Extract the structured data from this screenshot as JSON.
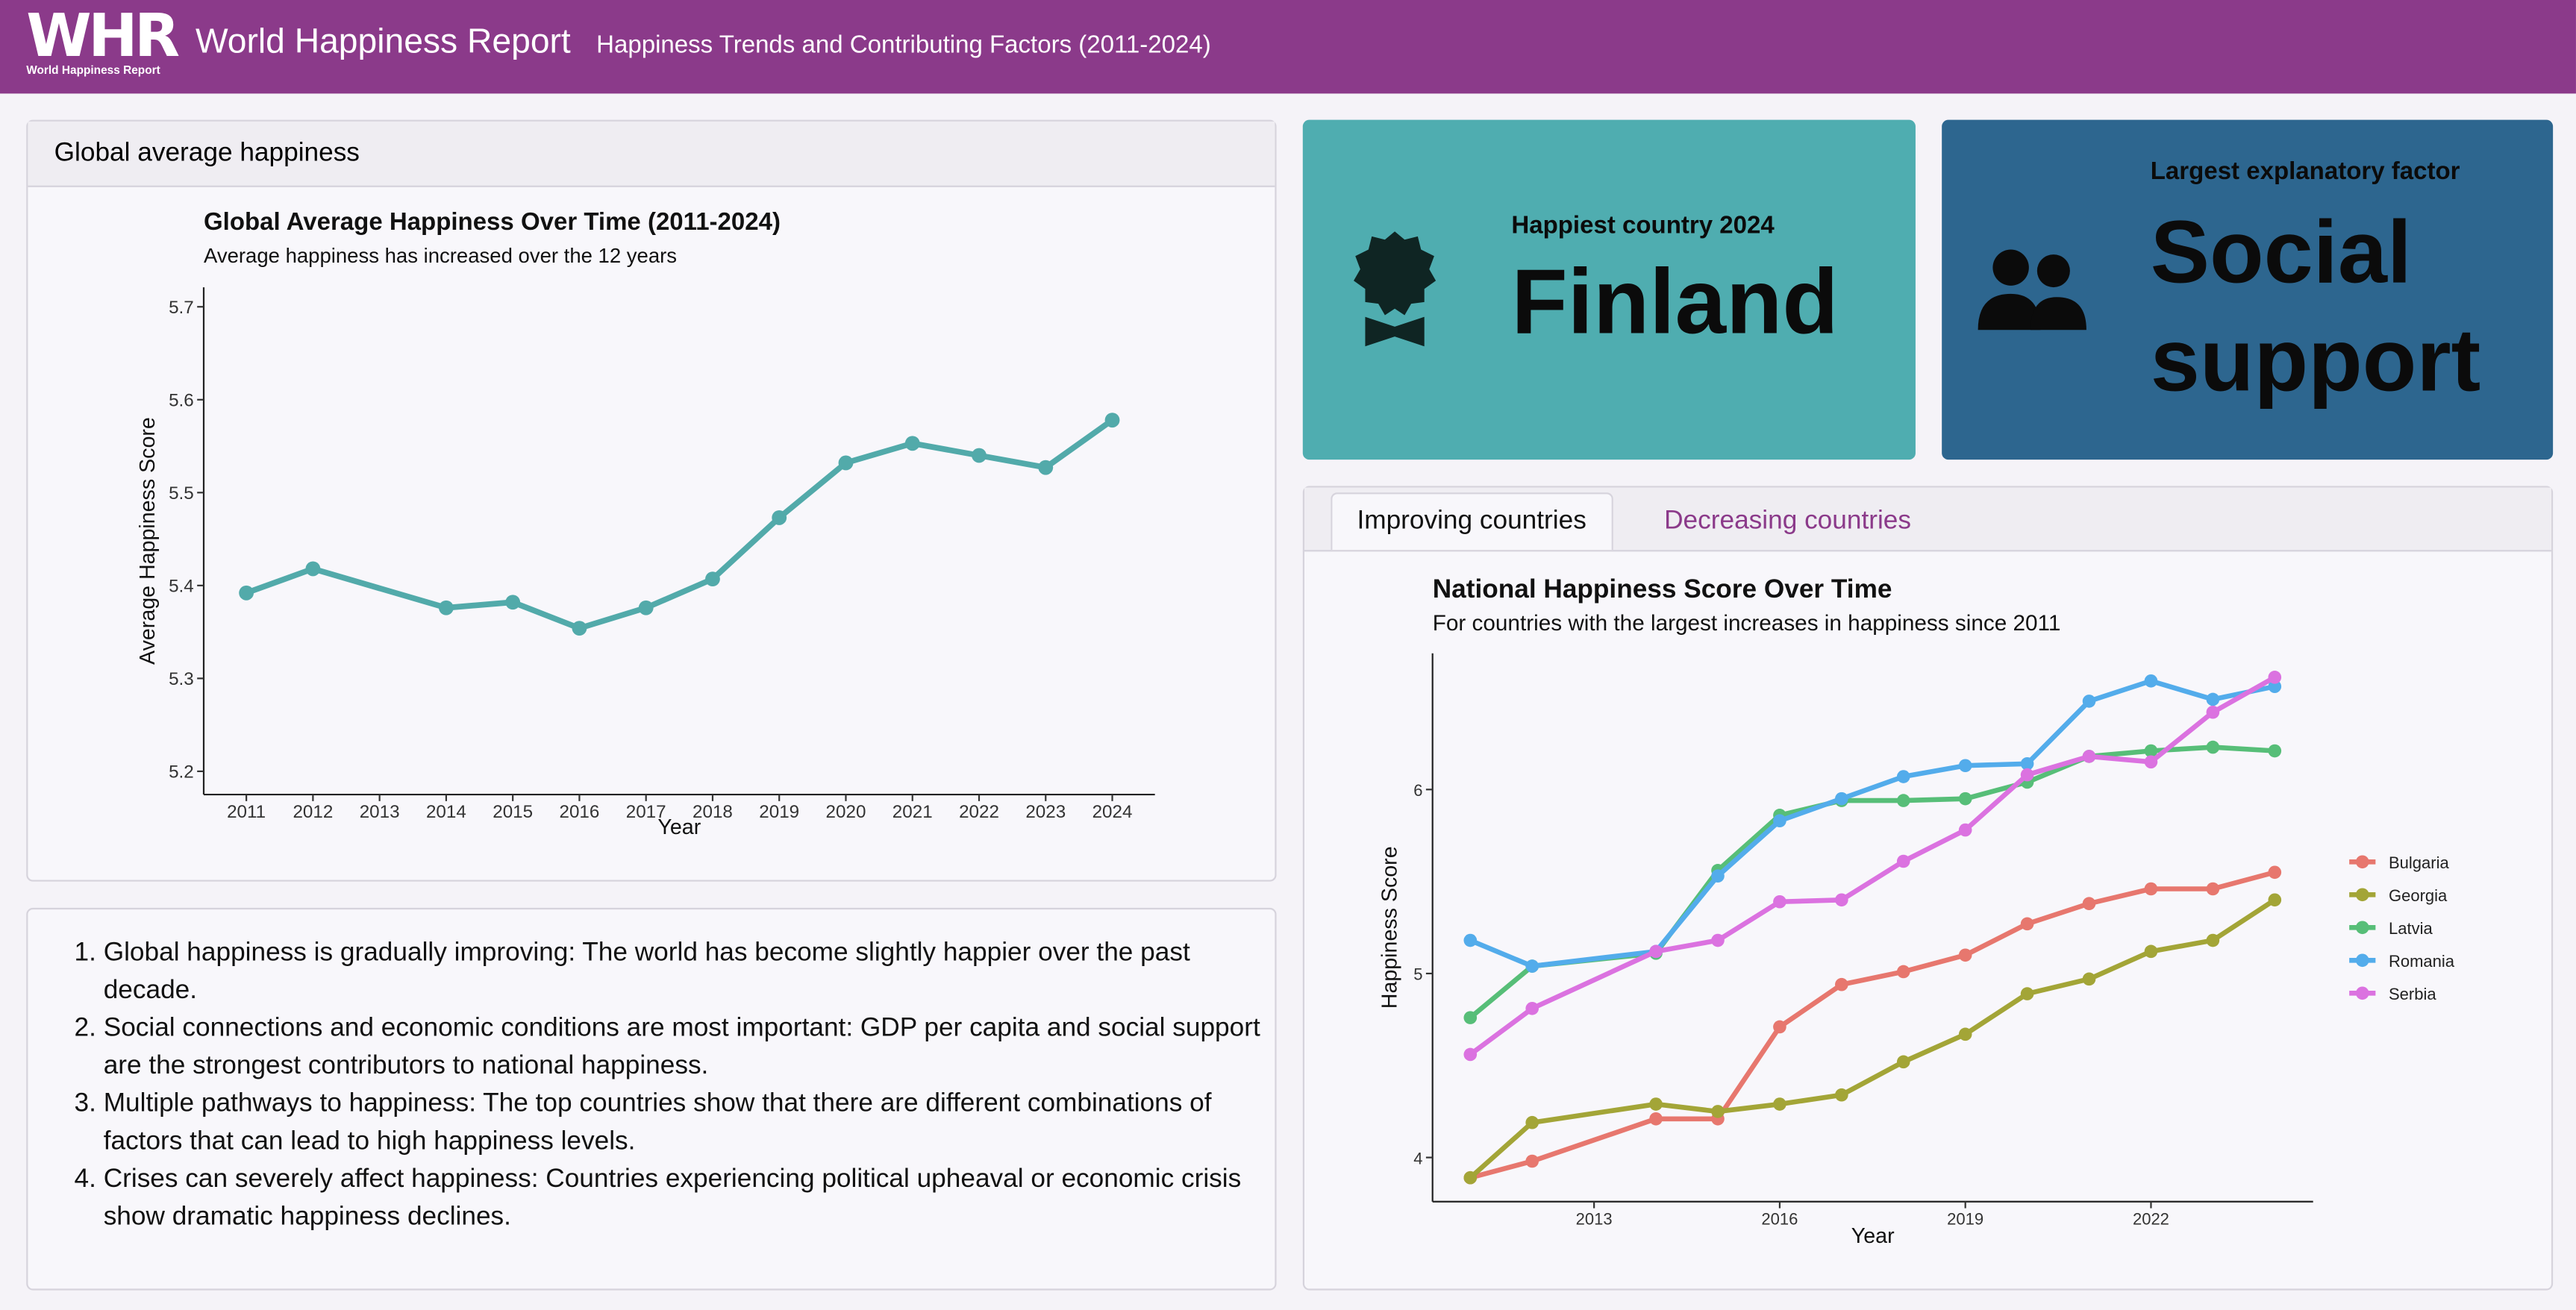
{
  "header": {
    "logo": "WHR",
    "logo_caption": "World Happiness Report",
    "title": "World Happiness Report",
    "subtitle": "Happiness Trends and Contributing Factors (2011-2024)"
  },
  "global_card": {
    "title": "Global average happiness"
  },
  "value_boxes": [
    {
      "label": "Happiest country 2024",
      "value": "Finland"
    },
    {
      "label": "Largest explanatory factor",
      "value": "Social support"
    }
  ],
  "tabs": [
    "Improving countries",
    "Decreasing countries"
  ],
  "findings": [
    "Global happiness is gradually improving: The world has become slightly happier over the past decade.",
    "Social connections and economic conditions are most important: GDP per capita and social support are the strongest contributors to national happiness.",
    "Multiple pathways to happiness: The top countries show that there are different combinations of factors that can lead to high happiness levels.",
    "Crises can severely affect happiness: Countries experiencing political upheaval or economic crisis show dramatic happiness declines."
  ],
  "chart_data": [
    {
      "type": "line",
      "title": "Global Average Happiness Over Time (2011-2024)",
      "subtitle": "Average happiness has increased over the 12 years",
      "x_label": "Year",
      "y_label": "Average Happiness Score",
      "x": [
        2011,
        2012,
        2014,
        2015,
        2016,
        2017,
        2018,
        2019,
        2020,
        2021,
        2022,
        2023,
        2024
      ],
      "values": [
        5.392,
        5.418,
        5.376,
        5.382,
        5.354,
        5.376,
        5.407,
        5.473,
        5.532,
        5.553,
        5.54,
        5.527,
        5.578
      ],
      "color": "#52aaaa",
      "xlim": [
        2010.36,
        2024.64
      ],
      "xticks": [
        2011,
        2012,
        2013,
        2014,
        2015,
        2016,
        2017,
        2018,
        2019,
        2020,
        2021,
        2022,
        2023,
        2024
      ],
      "ylim": [
        5.175,
        5.721
      ],
      "yticks": [
        5.2,
        5.3,
        5.4,
        5.5,
        5.6,
        5.7
      ],
      "grid": false
    },
    {
      "type": "line",
      "title": "National Happiness Score Over Time",
      "subtitle": "For countries with the largest increases in happiness since 2011",
      "x_label": "Year",
      "y_label": "Happiness Score",
      "x": [
        2011,
        2012,
        2014,
        2015,
        2016,
        2017,
        2018,
        2019,
        2020,
        2021,
        2022,
        2023,
        2024
      ],
      "series": [
        {
          "name": "Bulgaria",
          "color": "#e7776e",
          "values": [
            3.89,
            3.98,
            4.21,
            4.21,
            4.71,
            4.94,
            5.01,
            5.1,
            5.27,
            5.38,
            5.46,
            5.46,
            5.55
          ]
        },
        {
          "name": "Georgia",
          "color": "#a3a537",
          "values": [
            3.89,
            4.19,
            4.29,
            4.25,
            4.29,
            4.34,
            4.52,
            4.67,
            4.89,
            4.97,
            5.12,
            5.18,
            5.4
          ]
        },
        {
          "name": "Latvia",
          "color": "#57be78",
          "values": [
            4.76,
            5.04,
            5.11,
            5.56,
            5.86,
            5.94,
            5.94,
            5.95,
            6.04,
            6.18,
            6.21,
            6.23,
            6.21
          ]
        },
        {
          "name": "Romania",
          "color": "#53aceb",
          "values": [
            5.18,
            5.04,
            5.12,
            5.53,
            5.83,
            5.95,
            6.07,
            6.13,
            6.14,
            6.48,
            6.59,
            6.49,
            6.56
          ]
        },
        {
          "name": "Serbia",
          "color": "#db72e0",
          "values": [
            4.56,
            4.81,
            5.12,
            5.18,
            5.39,
            5.4,
            5.61,
            5.78,
            6.08,
            6.18,
            6.15,
            6.42,
            6.61
          ]
        }
      ],
      "xlim": [
        2010.39,
        2024.62
      ],
      "xticks": [
        2013,
        2016,
        2019,
        2022
      ],
      "ylim": [
        3.76,
        6.74
      ],
      "yticks": [
        4,
        5,
        6
      ],
      "grid": false,
      "legend": "right"
    }
  ]
}
